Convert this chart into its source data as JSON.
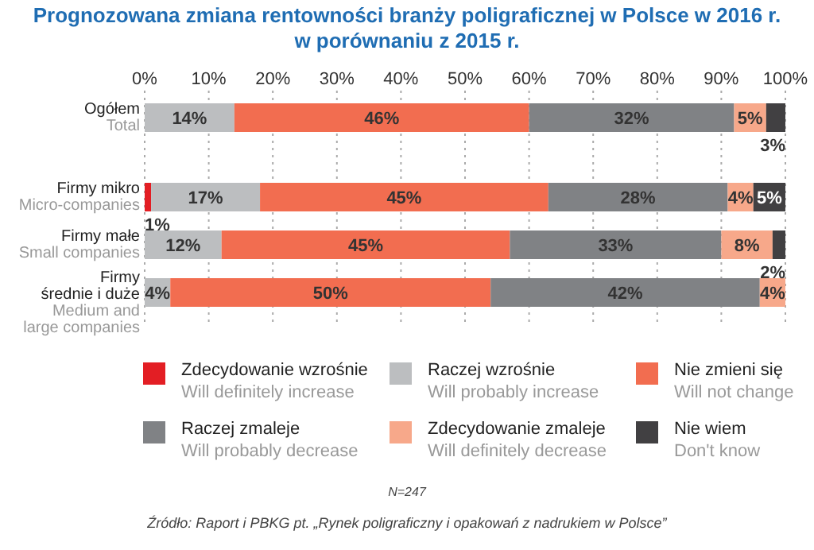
{
  "chart_data": {
    "type": "bar",
    "orientation": "horizontal",
    "stacked": true,
    "title": "Prognozowana zmiana rentowności branży poligraficznej w Polsce w 2016 r.\nw porównaniu z 2015 r.",
    "categories": [
      "Ogółem\nTotal",
      "Firmy mikro\nMicro-companies",
      "Firmy małe\nSmall companies",
      "Firmy\nśrednie i duże\nMedium and\nlarge companies"
    ],
    "series": [
      {
        "name": "Zdecydowanie wzrośnie\nWill definitely increase",
        "color": "#e31e24",
        "values": [
          null,
          1,
          null,
          null
        ],
        "value_labels": [
          null,
          "1%",
          null,
          null
        ]
      },
      {
        "name": "Raczej wzrośnie\nWill probably increase",
        "color": "#bcbec0",
        "values": [
          14,
          17,
          12,
          4
        ],
        "value_labels": [
          "14%",
          "17%",
          "12%",
          "4%"
        ]
      },
      {
        "name": "Nie zmieni się\nWill not change",
        "color": "#f26d50",
        "values": [
          46,
          45,
          45,
          50
        ],
        "value_labels": [
          "46%",
          "45%",
          "45%",
          "50%"
        ]
      },
      {
        "name": "Raczej zmaleje\nWill probably decrease",
        "color": "#808285",
        "values": [
          32,
          28,
          33,
          42
        ],
        "value_labels": [
          "32%",
          "28%",
          "33%",
          "42%"
        ]
      },
      {
        "name": "Zdecydowanie zmaleje\nWill definitely decrease",
        "color": "#f7a88a",
        "values": [
          5,
          4,
          8,
          4
        ],
        "value_labels": [
          "5%",
          "4%",
          "8%",
          "4%"
        ]
      },
      {
        "name": "Nie wiem\nDon't know",
        "color": "#414042",
        "values": [
          3,
          5,
          2,
          null
        ],
        "value_labels": [
          "3%",
          "5%",
          "2%",
          null
        ]
      }
    ],
    "xlim": [
      0,
      100
    ],
    "xticks": [
      {
        "value": 0,
        "label": "0%"
      },
      {
        "value": 10,
        "label": "10%"
      },
      {
        "value": 20,
        "label": "20%"
      },
      {
        "value": 30,
        "label": "30%"
      },
      {
        "value": 40,
        "label": "40%"
      },
      {
        "value": 50,
        "label": "50%"
      },
      {
        "value": 60,
        "label": "60%"
      },
      {
        "value": 70,
        "label": "70%"
      },
      {
        "value": 80,
        "label": "80%"
      },
      {
        "value": 90,
        "label": "90%"
      },
      {
        "value": 100,
        "label": "100%"
      }
    ],
    "grid": "x",
    "legend": "bottom",
    "annotations": [
      "N=247",
      "Źródło: Raport i PBKG pt. „Rynek poligraficzny i opakowań z nadrukiem w Polsce”"
    ]
  }
}
